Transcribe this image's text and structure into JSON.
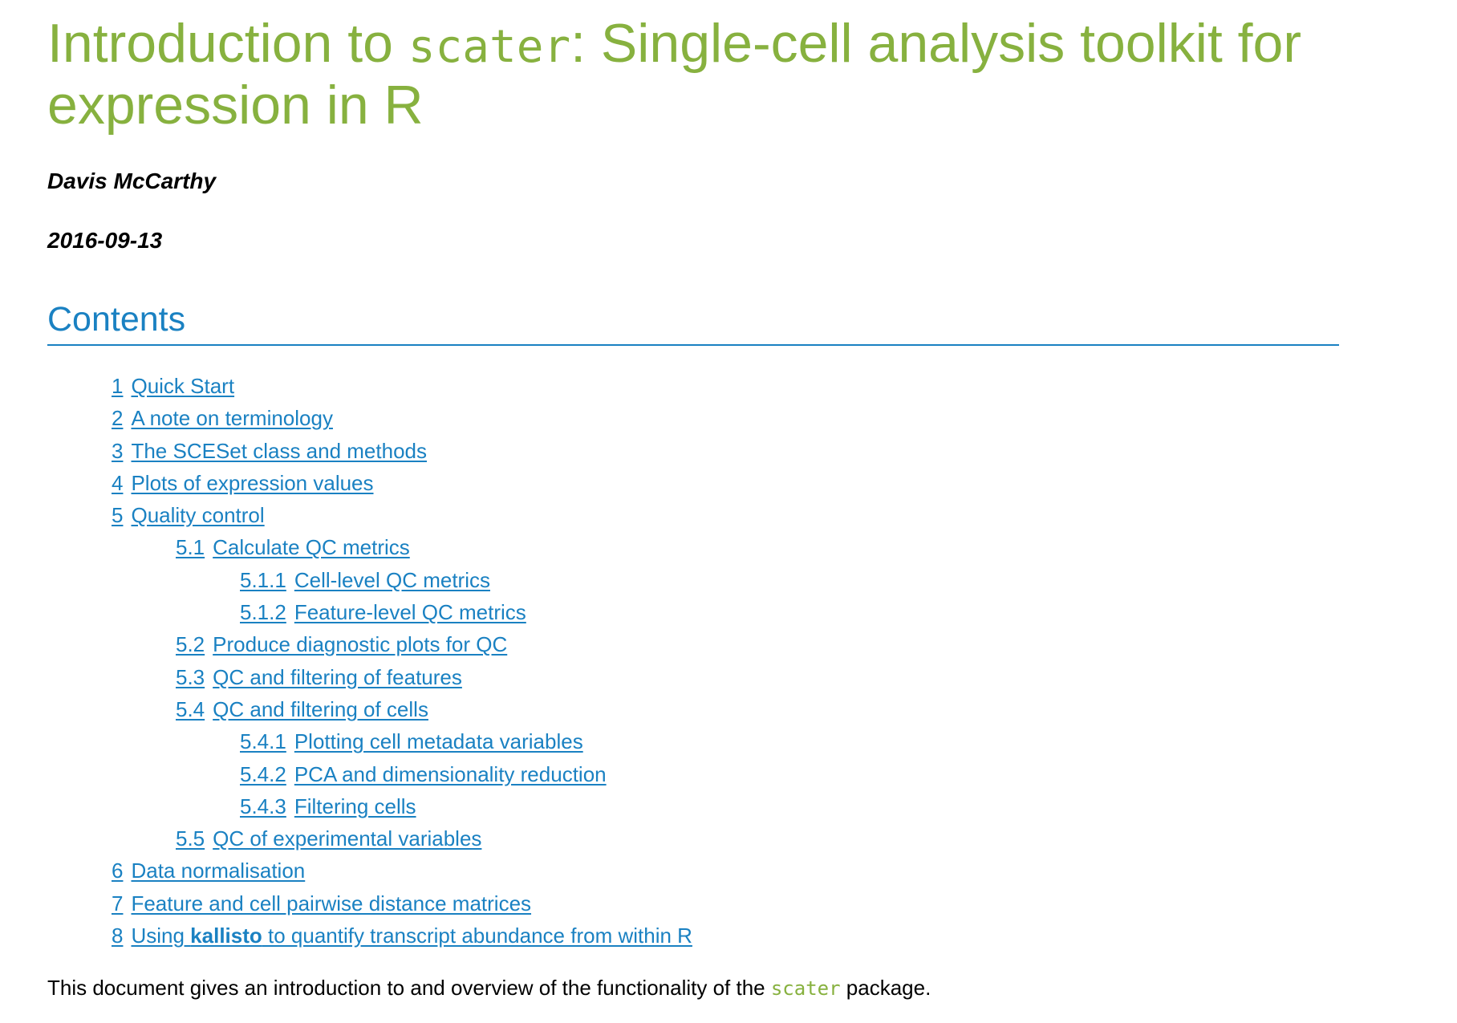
{
  "document": {
    "title_part1": "Introduction to ",
    "title_code": "scater",
    "title_part2": ": Single-cell analysis toolkit for expression in R",
    "author": "Davis McCarthy",
    "date": "2016-09-13",
    "contents_heading": "Contents",
    "intro_before": "This document gives an introduction to and overview of the functionality of the ",
    "intro_code": "scater",
    "intro_after": " package."
  },
  "toc": [
    {
      "num": "1",
      "label": "Quick Start",
      "level": 1
    },
    {
      "num": "2",
      "label": "A note on terminology",
      "level": 1
    },
    {
      "num": "3",
      "label": "The SCESet class and methods",
      "level": 1
    },
    {
      "num": "4",
      "label": "Plots of expression values",
      "level": 1
    },
    {
      "num": "5",
      "label": "Quality control",
      "level": 1
    },
    {
      "num": "5.1",
      "label": "Calculate QC metrics",
      "level": 2
    },
    {
      "num": "5.1.1",
      "label": "Cell-level QC metrics",
      "level": 3
    },
    {
      "num": "5.1.2",
      "label": "Feature-level QC metrics",
      "level": 3
    },
    {
      "num": "5.2",
      "label": "Produce diagnostic plots for QC",
      "level": 2
    },
    {
      "num": "5.3",
      "label": "QC and filtering of features",
      "level": 2
    },
    {
      "num": "5.4",
      "label": "QC and filtering of cells",
      "level": 2
    },
    {
      "num": "5.4.1",
      "label": "Plotting cell metadata variables",
      "level": 3
    },
    {
      "num": "5.4.2",
      "label": "PCA and dimensionality reduction",
      "level": 3
    },
    {
      "num": "5.4.3",
      "label": "Filtering cells",
      "level": 3
    },
    {
      "num": "5.5",
      "label": "QC of experimental variables",
      "level": 2
    },
    {
      "num": "6",
      "label": "Data normalisation",
      "level": 1
    },
    {
      "num": "7",
      "label": "Feature and cell pairwise distance matrices",
      "level": 1
    },
    {
      "num": "8",
      "label_before": "Using ",
      "label_bold": "kallisto",
      "label_after": " to quantify transcript abundance from within R",
      "level": 1
    }
  ],
  "colors": {
    "title": "#87B13F",
    "link": "#1A81C2",
    "code_inline": "#87B13F"
  }
}
